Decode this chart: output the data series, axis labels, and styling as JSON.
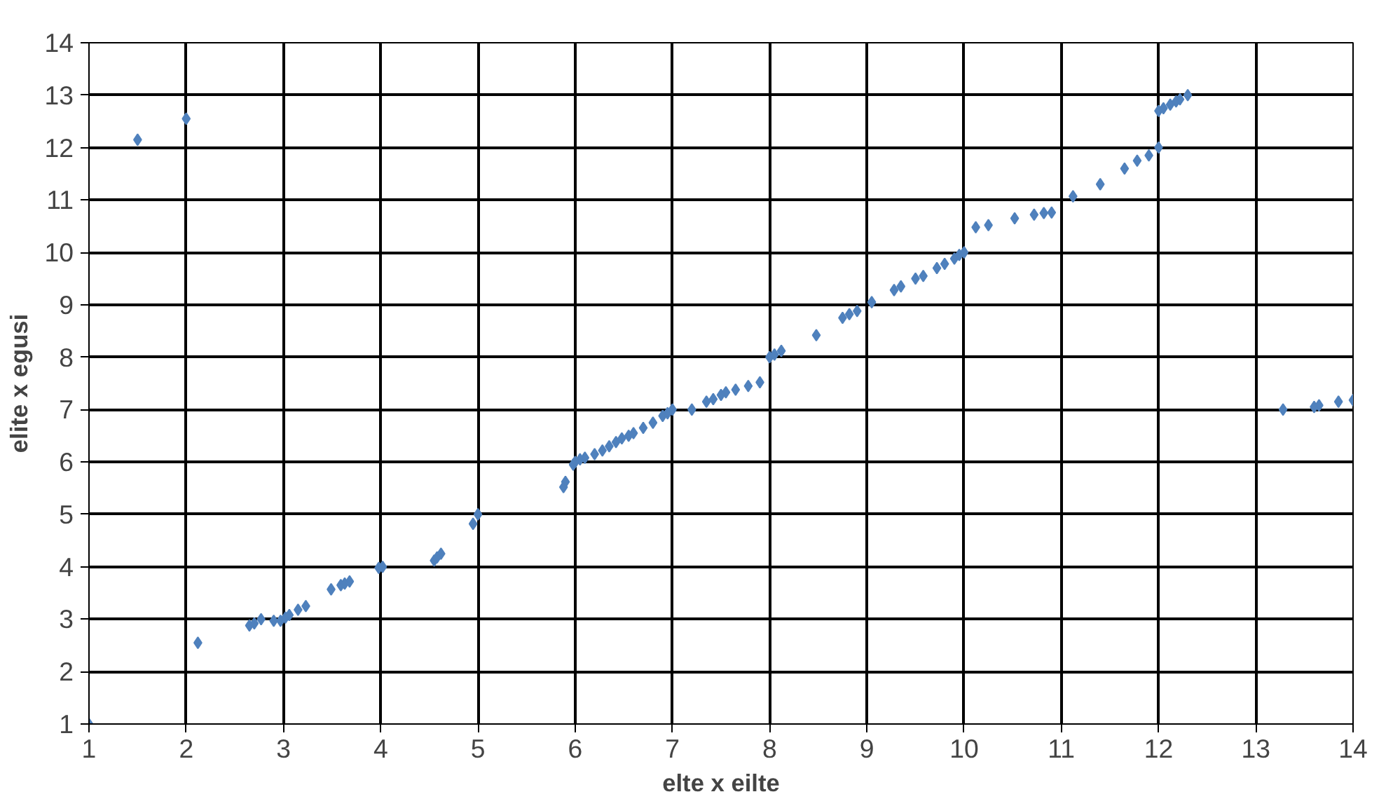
{
  "chart_data": {
    "type": "scatter",
    "xlabel": "elte x eilte",
    "ylabel": "elite x egusi",
    "xlim": [
      1,
      14
    ],
    "ylim": [
      1,
      14
    ],
    "xticks": [
      1,
      2,
      3,
      4,
      5,
      6,
      7,
      8,
      9,
      10,
      11,
      12,
      13,
      14
    ],
    "yticks": [
      1,
      2,
      3,
      4,
      5,
      6,
      7,
      8,
      9,
      10,
      11,
      12,
      13,
      14
    ],
    "grid": true,
    "marker": "diamond",
    "color": "#4f81bd",
    "x": [
      1,
      1.5,
      2,
      2.12,
      2.65,
      2.7,
      2.77,
      2.9,
      2.97,
      3.02,
      3.06,
      3.15,
      3.23,
      3.49,
      3.59,
      3.63,
      3.68,
      3.98,
      4.02,
      4.55,
      4.58,
      4.62,
      4.95,
      5.0,
      5.88,
      5.9,
      5.98,
      6.0,
      6.05,
      6.1,
      6.2,
      6.28,
      6.35,
      6.42,
      6.48,
      6.55,
      6.6,
      6.7,
      6.8,
      6.9,
      6.95,
      7.0,
      7.2,
      7.35,
      7.42,
      7.5,
      7.55,
      7.65,
      7.78,
      7.9,
      8.0,
      8.05,
      8.12,
      8.48,
      8.75,
      8.82,
      8.9,
      9.05,
      9.28,
      9.35,
      9.5,
      9.58,
      9.72,
      9.8,
      9.9,
      9.95,
      10.0,
      10.12,
      10.25,
      10.52,
      10.72,
      10.82,
      10.9,
      11.12,
      11.4,
      11.65,
      11.78,
      11.9,
      12.0,
      12.0,
      12.05,
      12.12,
      12.18,
      12.22,
      12.3,
      13.28,
      13.6,
      13.65,
      13.85,
      14.0
    ],
    "values": [
      1,
      12.15,
      12.55,
      2.55,
      2.88,
      2.92,
      3.0,
      2.97,
      2.97,
      3.03,
      3.08,
      3.18,
      3.25,
      3.57,
      3.65,
      3.68,
      3.72,
      3.98,
      4.0,
      4.12,
      4.18,
      4.25,
      4.82,
      5.0,
      5.52,
      5.62,
      5.95,
      6.0,
      6.05,
      6.08,
      6.15,
      6.22,
      6.3,
      6.38,
      6.45,
      6.5,
      6.55,
      6.65,
      6.75,
      6.88,
      6.93,
      7.0,
      7.0,
      7.15,
      7.2,
      7.28,
      7.33,
      7.38,
      7.45,
      7.52,
      8.0,
      8.05,
      8.12,
      8.42,
      8.75,
      8.82,
      8.88,
      9.05,
      9.28,
      9.35,
      9.5,
      9.55,
      9.7,
      9.78,
      9.88,
      9.95,
      10.0,
      10.48,
      10.52,
      10.65,
      10.72,
      10.75,
      10.76,
      11.07,
      11.3,
      11.6,
      11.75,
      11.85,
      12.0,
      12.7,
      12.75,
      12.82,
      12.88,
      12.92,
      13.0,
      7.0,
      7.05,
      7.08,
      7.15,
      7.18
    ]
  }
}
